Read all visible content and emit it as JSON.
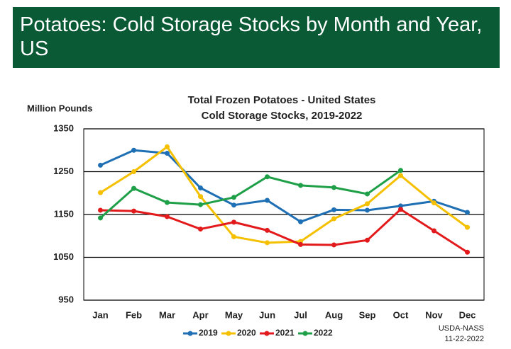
{
  "header": {
    "title": "Potatoes: Cold Storage Stocks by Month and Year, US"
  },
  "chart_data": {
    "type": "line",
    "title": "Total Frozen Potatoes - United States",
    "subtitle": "Cold Storage Stocks, 2019-2022",
    "y_label": "Million Pounds",
    "source": "USDA-NASS",
    "date": "11-22-2022",
    "categories": [
      "Jan",
      "Feb",
      "Mar",
      "Apr",
      "May",
      "Jun",
      "Jul",
      "Aug",
      "Sep",
      "Oct",
      "Nov",
      "Dec"
    ],
    "series": [
      {
        "name": "2019",
        "color": "#1f6fb5",
        "values": [
          1265,
          1300,
          1293,
          1212,
          1172,
          1183,
          1133,
          1161,
          1160,
          1170,
          1181,
          1155
        ]
      },
      {
        "name": "2020",
        "color": "#f5c000",
        "values": [
          1201,
          1250,
          1308,
          1192,
          1098,
          1084,
          1087,
          1140,
          1175,
          1241,
          1177,
          1120
        ]
      },
      {
        "name": "2021",
        "color": "#e31a1c",
        "values": [
          1160,
          1158,
          1145,
          1116,
          1132,
          1113,
          1080,
          1079,
          1090,
          1162,
          1112,
          1062
        ]
      },
      {
        "name": "2022",
        "color": "#1fa048",
        "values": [
          1142,
          1211,
          1178,
          1173,
          1190,
          1238,
          1218,
          1213,
          1198,
          1253,
          null,
          null
        ]
      }
    ],
    "ylim": [
      950,
      1350
    ],
    "yticks": [
      950,
      1050,
      1150,
      1250,
      1350
    ],
    "grid": true,
    "legend": "bottom"
  }
}
